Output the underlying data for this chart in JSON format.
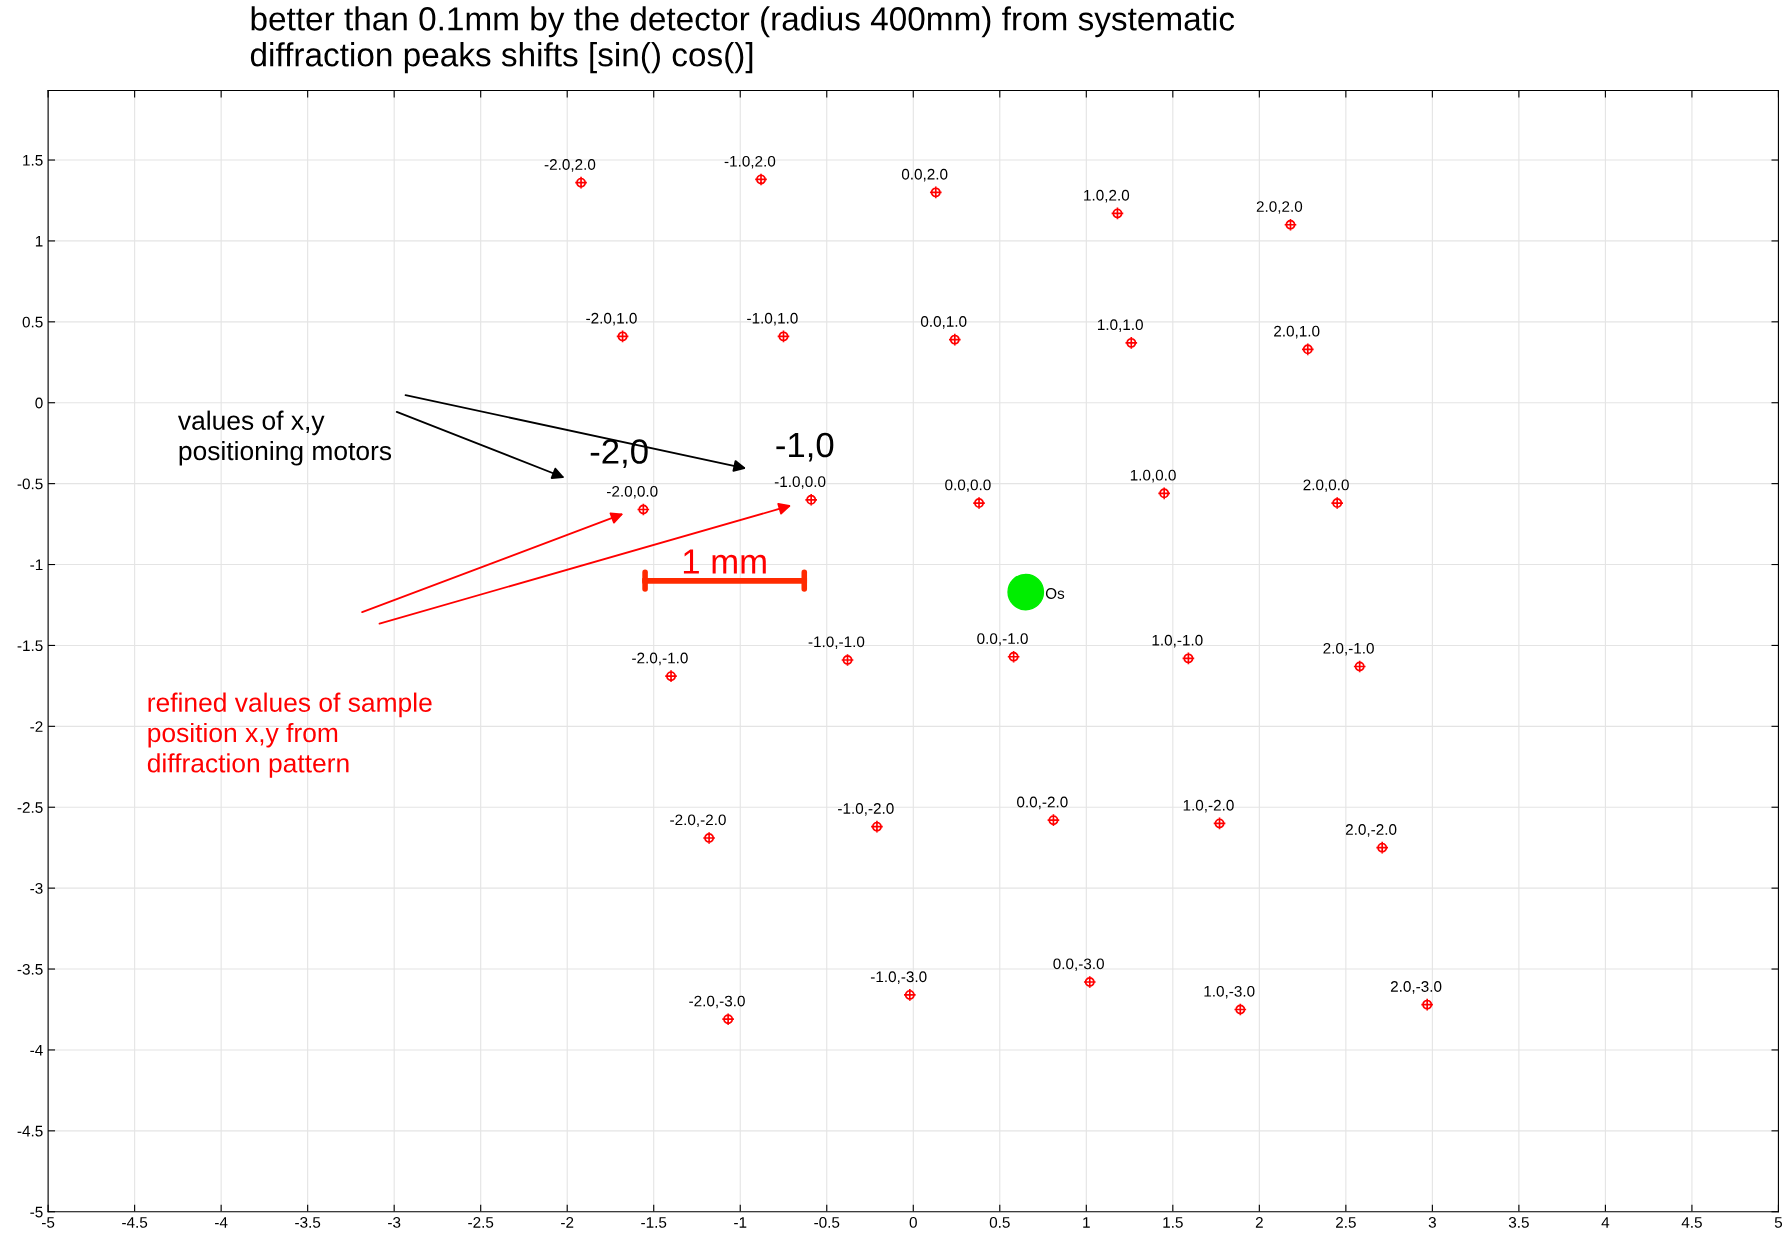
{
  "chart_data": {
    "type": "scatter",
    "title": "better than 0.1mm by the detector (radius 400mm) from systematic\ndiffraction peaks shifts [sin() cos()]",
    "xlim": [
      -5,
      5
    ],
    "ylim": [
      -5,
      1.93
    ],
    "xticks": [
      -5,
      -4.5,
      -4,
      -3.5,
      -3,
      -2.5,
      -2,
      -1.5,
      -1,
      -0.5,
      0,
      0.5,
      1,
      1.5,
      2,
      2.5,
      3,
      3.5,
      4,
      4.5,
      5
    ],
    "yticks": [
      -5,
      -4.5,
      -4,
      -3.5,
      -3,
      -2.5,
      -2,
      -1.5,
      -1,
      -0.5,
      0,
      0.5,
      1,
      1.5
    ],
    "grid": true,
    "marker": "cross",
    "series": [
      {
        "color": "#ff0000",
        "x": [
          -1.92,
          -0.88,
          0.13,
          1.18,
          2.18,
          -1.68,
          -0.75,
          0.24,
          1.26,
          2.28,
          -1.56,
          -0.59,
          0.38,
          1.45,
          2.45,
          -1.4,
          -0.38,
          0.58,
          1.59,
          2.58,
          -1.18,
          -0.21,
          0.81,
          1.77,
          2.71,
          -1.07,
          -0.02,
          1.02,
          1.89,
          2.97
        ],
        "values": [
          1.36,
          1.38,
          1.3,
          1.17,
          1.1,
          0.41,
          0.41,
          0.39,
          0.37,
          0.33,
          -0.66,
          -0.6,
          -0.62,
          -0.56,
          -0.62,
          -1.69,
          -1.59,
          -1.57,
          -1.58,
          -1.63,
          -2.69,
          -2.62,
          -2.58,
          -2.6,
          -2.75,
          -3.81,
          -3.66,
          -3.58,
          -3.75,
          -3.72
        ],
        "value_labels": [
          "-2.0,2.0",
          "-1.0,2.0",
          "0.0,2.0",
          "1.0,2.0",
          "2.0,2.0",
          "-2.0,1.0",
          "-1.0,1.0",
          "0.0,1.0",
          "1.0,1.0",
          "2.0,1.0",
          "-2.0,0.0",
          "-1.0,0.0",
          "0.0,0.0",
          "1.0,0.0",
          "2.0,0.0",
          "-2.0,-1.0",
          "-1.0,-1.0",
          "0.0,-1.0",
          "1.0,-1.0",
          "2.0,-1.0",
          "-2.0,-2.0",
          "-1.0,-2.0",
          "0.0,-2.0",
          "1.0,-2.0",
          "2.0,-2.0",
          "-2.0,-3.0",
          "-1.0,-3.0",
          "0.0,-3.0",
          "1.0,-3.0",
          "2.0,-3.0"
        ]
      },
      {
        "marker": "circle",
        "color": "#00ee00",
        "x": [
          0.65
        ],
        "values": [
          -1.17
        ],
        "value_labels": [
          "Os"
        ]
      },
      {
        "type": "line",
        "marker": "none",
        "color": "#ff2a00",
        "x": [
          -1.55,
          -0.63
        ],
        "values": [
          -1.1,
          -1.1
        ]
      }
    ],
    "annotations": [
      "values of x,y\npositioning motors",
      "-2,0",
      "-1,0",
      "refined values of sample\nposition x,y from\ndiffraction pattern",
      "1 mm"
    ]
  }
}
